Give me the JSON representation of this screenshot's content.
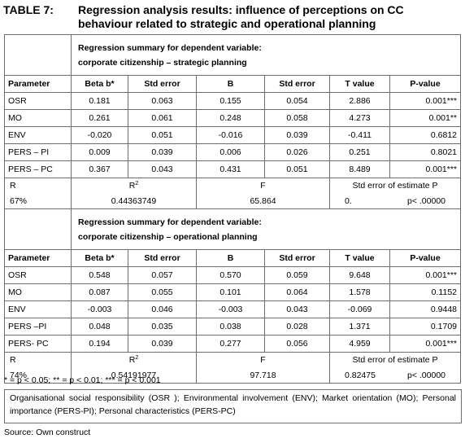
{
  "caption": {
    "label": "TABLE 7:",
    "text": "Regression analysis results: influence of perceptions on CC behaviour related to strategic and operational planning"
  },
  "columns": [
    "Parameter",
    "Beta b*",
    "Std error",
    "B",
    "Std error",
    "T value",
    "P-value"
  ],
  "section1": {
    "summary_line1": "Regression summary for dependent variable:",
    "summary_line2": "corporate citizenship – strategic planning",
    "rows": [
      {
        "param": "OSR",
        "beta": "0.181",
        "se1": "0.063",
        "b": "0.155",
        "se2": "0.054",
        "t": "2.886",
        "p": "0.001***"
      },
      {
        "param": "MO",
        "beta": "0.261",
        "se1": "0.061",
        "b": "0.248",
        "se2": "0.058",
        "t": "4.273",
        "p": "0.001**"
      },
      {
        "param": "ENV",
        "beta": "-0.020",
        "se1": "0.051",
        "b": "-0.016",
        "se2": "0.039",
        "t": "-0.411",
        "p": "0.6812"
      },
      {
        "param": "PERS – PI",
        "beta": "0.009",
        "se1": "0.039",
        "b": "0.006",
        "se2": "0.026",
        "t": "0.251",
        "p": "0.8021"
      },
      {
        "param": "PERS – PC",
        "beta": "0.367",
        "se1": "0.043",
        "b": "0.431",
        "se2": "0.051",
        "t": "8.489",
        "p": "0.001***"
      }
    ],
    "stats": {
      "r_label": "R",
      "r_value": "67%",
      "r2_label": "R",
      "r2_sup": "2",
      "r2_value": "0.44363749",
      "f_label": "F",
      "f_value": "65.864",
      "se_label": "Std error of estimate P",
      "se_value": "0.",
      "p_value": "p< .00000"
    }
  },
  "section2": {
    "summary_line1": "Regression summary for dependent variable:",
    "summary_line2": "corporate citizenship – operational planning",
    "rows": [
      {
        "param": "OSR",
        "beta": "0.548",
        "se1": "0.057",
        "b": "0.570",
        "se2": "0.059",
        "t": "9.648",
        "p": "0.001***"
      },
      {
        "param": "MO",
        "beta": "0.087",
        "se1": "0.055",
        "b": "0.101",
        "se2": "0.064",
        "t": "1.578",
        "p": "0.1152"
      },
      {
        "param": "ENV",
        "beta": "-0.003",
        "se1": "0.046",
        "b": "-0.003",
        "se2": "0.043",
        "t": "-0.069",
        "p": "0.9448"
      },
      {
        "param": "PERS –PI",
        "beta": "0.048",
        "se1": "0.035",
        "b": "0.038",
        "se2": "0.028",
        "t": "1.371",
        "p": "0.1709"
      },
      {
        "param": "PERS- PC",
        "beta": "0.194",
        "se1": "0.039",
        "b": "0.277",
        "se2": "0.056",
        "t": "4.959",
        "p": "0.001***"
      }
    ],
    "stats": {
      "r_label": "R",
      "r_value": "74%",
      "r2_label": "R",
      "r2_sup": "2",
      "r2_value": "0.54191977",
      "f_label": "F",
      "f_value": "97.718",
      "se_label": "Std error of estimate P",
      "se_value": "0.82475",
      "p_value": "p< .00000"
    }
  },
  "significance_note": "*  = p < 0.05;  **  = p < 0.01;  *** = p < 0.001",
  "definitions": "Organisational social responsibility (OSR ); Environmental involvement (ENV); Market orientation (MO); Personal importance (PERS-PI); Personal characteristics (PERS-PC)",
  "source": "Source: Own construct"
}
